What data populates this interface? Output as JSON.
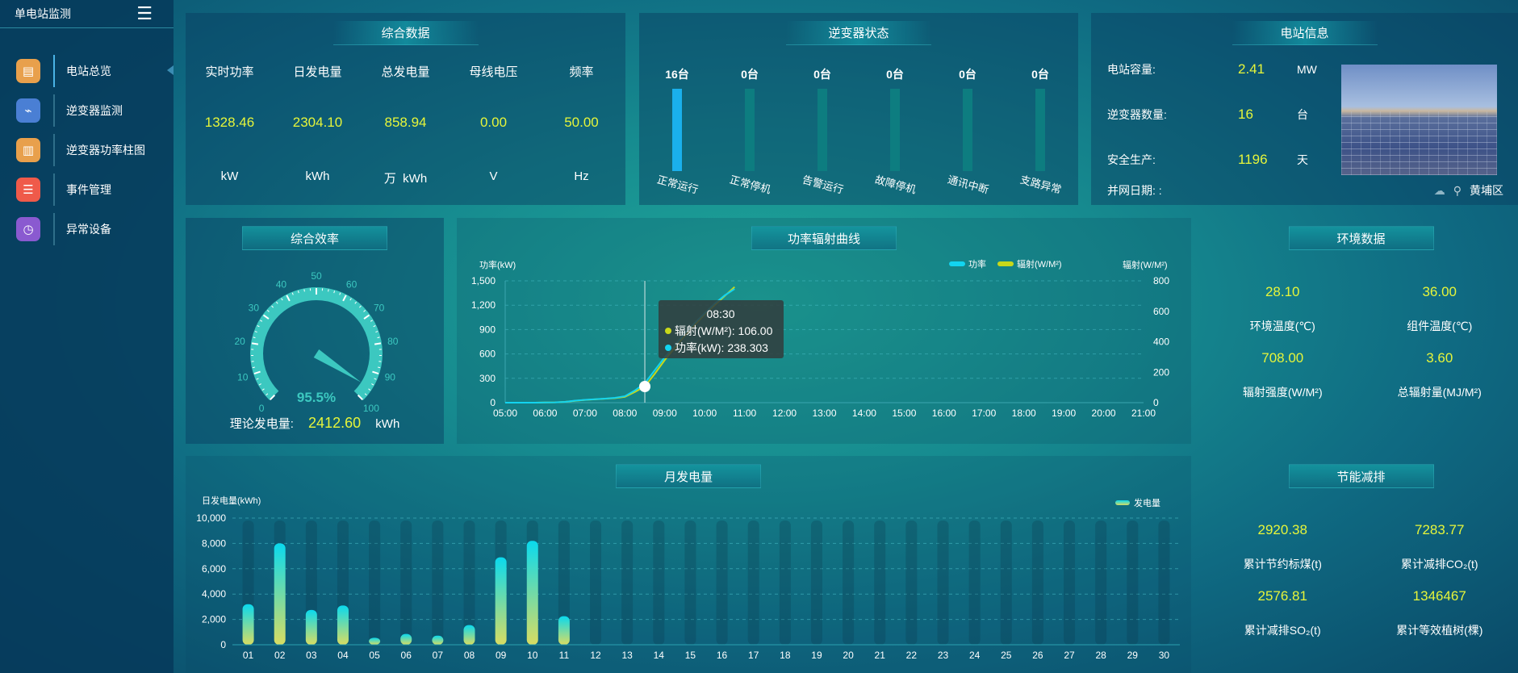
{
  "sidebar": {
    "title": "单电站监测",
    "menu_icon": "hamburger-icon",
    "items": [
      {
        "label": "电站总览",
        "icon": "document-icon",
        "color": "#e8a04c",
        "active": true
      },
      {
        "label": "逆变器监测",
        "icon": "monitor-icon",
        "color": "#4a7fd4"
      },
      {
        "label": "逆变器功率柱图",
        "icon": "bar-chart-icon",
        "color": "#e8a04c"
      },
      {
        "label": "事件管理",
        "icon": "notepad-icon",
        "color": "#ef5a4a"
      },
      {
        "label": "异常设备",
        "icon": "device-clock-icon",
        "color": "#8a5ad0"
      }
    ]
  },
  "summary": {
    "title": "综合数据",
    "cols": [
      {
        "label": "实时功率",
        "value": "1328.46",
        "unit": "kW"
      },
      {
        "label": "日发电量",
        "value": "2304.10",
        "unit": "kWh"
      },
      {
        "label": "总发电量",
        "value": "858.94",
        "unit": "万  kWh"
      },
      {
        "label": "母线电压",
        "value": "0.00",
        "unit": "V"
      },
      {
        "label": "频率",
        "value": "50.00",
        "unit": "Hz"
      }
    ]
  },
  "inverter": {
    "title": "逆变器状态",
    "total": 16,
    "items": [
      {
        "count": "16台",
        "value": 16,
        "label": "正常运行"
      },
      {
        "count": "0台",
        "value": 0,
        "label": "正常停机"
      },
      {
        "count": "0台",
        "value": 0,
        "label": "告警运行"
      },
      {
        "count": "0台",
        "value": 0,
        "label": "故障停机"
      },
      {
        "count": "0台",
        "value": 0,
        "label": "通讯中断"
      },
      {
        "count": "0台",
        "value": 0,
        "label": "支路异常"
      }
    ]
  },
  "station": {
    "title": "电站信息",
    "rows": [
      {
        "label": "电站容量:",
        "value": "2.41",
        "unit": "MW"
      },
      {
        "label": "逆变器数量:",
        "value": "16",
        "unit": "台"
      },
      {
        "label": "安全生产:",
        "value": "1196",
        "unit": "天"
      }
    ],
    "grid_date_label": "并网日期: :",
    "weather_icon": "cloud-icon",
    "location_icon": "map-pin-icon",
    "location": "黄埔区"
  },
  "efficiency": {
    "title": "综合效率",
    "value": 95.5,
    "value_label": "95.5%",
    "min": 0,
    "max": 100,
    "ticks": [
      "0",
      "10",
      "20",
      "30",
      "40",
      "50",
      "60",
      "70",
      "80",
      "90",
      "100"
    ],
    "color": "#3cc8c0",
    "theory_label": "理论发电量:",
    "theory_value": "2412.60",
    "theory_unit": "kWh"
  },
  "environment": {
    "title": "环境数据",
    "items": [
      {
        "value": "28.10",
        "label": "环境温度(℃)"
      },
      {
        "value": "36.00",
        "label": "组件温度(℃)"
      },
      {
        "value": "708.00",
        "label": "辐射强度(W/M²)"
      },
      {
        "value": "3.60",
        "label": "总辐射量(MJ/M²)"
      }
    ]
  },
  "saving": {
    "title": "节能减排",
    "items": [
      {
        "value": "2920.38",
        "label": "累计节约标煤(t)"
      },
      {
        "value": "7283.77",
        "label": "累计减排CO₂(t)"
      },
      {
        "value": "2576.81",
        "label": "累计减排SO₂(t)"
      },
      {
        "value": "1346467",
        "label": "累计等效植树(棵)"
      }
    ]
  },
  "chart_data": [
    {
      "type": "line",
      "title": "功率辐射曲线",
      "ylabel": "功率(kW)",
      "ylabel_right": "辐射(W/M²)",
      "ylim": [
        0,
        1500
      ],
      "yticks": [
        "0",
        "300",
        "600",
        "900",
        "1,200",
        "1,500"
      ],
      "ylim_right": [
        0,
        800
      ],
      "yticks_right": [
        "0",
        "200",
        "400",
        "600",
        "800"
      ],
      "xticks": [
        "05:00",
        "06:00",
        "07:00",
        "08:00",
        "09:00",
        "10:00",
        "11:00",
        "12:00",
        "13:00",
        "14:00",
        "15:00",
        "16:00",
        "17:00",
        "18:00",
        "19:00",
        "20:00",
        "21:00"
      ],
      "legend": "top-right",
      "grid": true,
      "x": [
        "05:00",
        "05:15",
        "05:30",
        "05:45",
        "06:00",
        "06:15",
        "06:30",
        "06:45",
        "07:00",
        "07:15",
        "07:30",
        "07:45",
        "08:00",
        "08:15",
        "08:30",
        "08:45",
        "09:00",
        "09:15",
        "09:30",
        "09:45",
        "10:00",
        "10:15",
        "10:30",
        "10:45"
      ],
      "series": [
        {
          "name": "功率",
          "axis": "left",
          "color": "#12d4f0",
          "values": [
            0,
            0,
            0,
            0,
            2,
            4,
            10,
            25,
            35,
            42,
            50,
            60,
            80,
            150,
            238.303,
            400,
            560,
            700,
            850,
            980,
            1100,
            1220,
            1320,
            1400
          ]
        },
        {
          "name": "辐射(W/M²)",
          "axis": "right",
          "color": "#c8d81a",
          "values": [
            0,
            0,
            0,
            0,
            1,
            2,
            5,
            12,
            18,
            22,
            26,
            30,
            38,
            70,
            106,
            190,
            280,
            360,
            440,
            510,
            580,
            640,
            700,
            760
          ]
        }
      ],
      "tooltip": {
        "time": "08:30",
        "lines": [
          "辐射(W/M²): 106.00",
          "功率(kW): 238.303"
        ]
      }
    },
    {
      "type": "bar",
      "title": "月发电量",
      "ylabel": "日发电量(kWh)",
      "ylim": [
        0,
        10000
      ],
      "yticks": [
        "0",
        "2,000",
        "4,000",
        "6,000",
        "8,000",
        "10,000"
      ],
      "legend": "top-right",
      "grid": true,
      "categories": [
        "01",
        "02",
        "03",
        "04",
        "05",
        "06",
        "07",
        "08",
        "09",
        "10",
        "11",
        "12",
        "13",
        "14",
        "15",
        "16",
        "17",
        "18",
        "19",
        "20",
        "21",
        "22",
        "23",
        "24",
        "25",
        "26",
        "27",
        "28",
        "29",
        "30"
      ],
      "series": [
        {
          "name": "发电量",
          "values": [
            3200,
            8000,
            2750,
            3100,
            550,
            850,
            720,
            1550,
            6900,
            8200,
            2250,
            0,
            0,
            0,
            0,
            0,
            0,
            0,
            0,
            0,
            0,
            0,
            0,
            0,
            0,
            0,
            0,
            0,
            0,
            0
          ]
        }
      ]
    }
  ]
}
